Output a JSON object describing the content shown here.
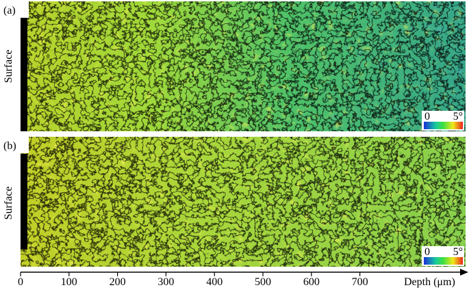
{
  "panels": [
    {
      "label": "(a)",
      "side_label": "Surface",
      "colorbar": {
        "min": "0",
        "max": "5°"
      }
    },
    {
      "label": "(b)",
      "side_label": "Surface",
      "colorbar": {
        "min": "0",
        "max": "5°"
      }
    }
  ],
  "axis": {
    "label": "Depth (μm)",
    "xlim": [
      0,
      918
    ],
    "xticks": [
      0,
      100,
      200,
      300,
      400,
      500,
      600,
      700
    ]
  }
}
